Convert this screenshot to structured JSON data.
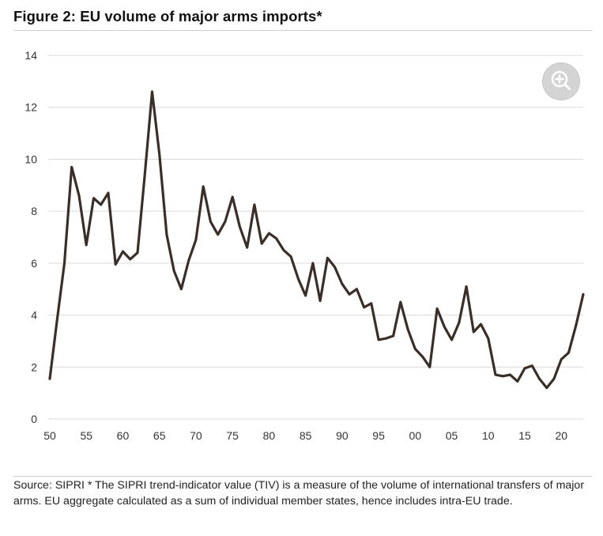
{
  "title": "Figure 2: EU volume of major arms imports*",
  "source_note": "Source: SIPRI * The SIPRI trend-indicator value (TIV) is a measure of the volume of international transfers of major arms. EU aggregate calculated as a sum of individual member states, hence includes intra-EU trade.",
  "zoom_icon": "zoom-in-icon",
  "colors": {
    "line": "#3a2e29",
    "grid": "#d9d9d9",
    "tick_text": "#333333"
  },
  "chart_data": {
    "type": "line",
    "title": "Figure 2: EU volume of major arms imports*",
    "xlabel": "",
    "ylabel": "",
    "xlim": [
      1950,
      2023
    ],
    "ylim": [
      0,
      14
    ],
    "grid": true,
    "yticks": [
      0,
      2,
      4,
      6,
      8,
      10,
      12,
      14
    ],
    "xticks": [
      {
        "value": 1950,
        "label": "50"
      },
      {
        "value": 1955,
        "label": "55"
      },
      {
        "value": 1960,
        "label": "60"
      },
      {
        "value": 1965,
        "label": "65"
      },
      {
        "value": 1970,
        "label": "70"
      },
      {
        "value": 1975,
        "label": "75"
      },
      {
        "value": 1980,
        "label": "80"
      },
      {
        "value": 1985,
        "label": "85"
      },
      {
        "value": 1990,
        "label": "90"
      },
      {
        "value": 1995,
        "label": "95"
      },
      {
        "value": 2000,
        "label": "00"
      },
      {
        "value": 2005,
        "label": "05"
      },
      {
        "value": 2010,
        "label": "10"
      },
      {
        "value": 2015,
        "label": "15"
      },
      {
        "value": 2020,
        "label": "20"
      }
    ],
    "x": [
      1950,
      1951,
      1952,
      1953,
      1954,
      1955,
      1956,
      1957,
      1958,
      1959,
      1960,
      1961,
      1962,
      1963,
      1964,
      1965,
      1966,
      1967,
      1968,
      1969,
      1970,
      1971,
      1972,
      1973,
      1974,
      1975,
      1976,
      1977,
      1978,
      1979,
      1980,
      1981,
      1982,
      1983,
      1984,
      1985,
      1986,
      1987,
      1988,
      1989,
      1990,
      1991,
      1992,
      1993,
      1994,
      1995,
      1996,
      1997,
      1998,
      1999,
      2000,
      2001,
      2002,
      2003,
      2004,
      2005,
      2006,
      2007,
      2008,
      2009,
      2010,
      2011,
      2012,
      2013,
      2014,
      2015,
      2016,
      2017,
      2018,
      2019,
      2020,
      2021,
      2022,
      2023
    ],
    "series": [
      {
        "values": [
          1.55,
          3.8,
          6.0,
          9.7,
          8.6,
          6.7,
          8.5,
          8.25,
          8.7,
          5.95,
          6.45,
          6.15,
          6.4,
          9.4,
          12.6,
          10.2,
          7.1,
          5.7,
          5.0,
          6.1,
          6.9,
          8.95,
          7.6,
          7.1,
          7.6,
          8.55,
          7.4,
          6.6,
          8.25,
          6.75,
          7.15,
          6.95,
          6.5,
          6.25,
          5.4,
          4.75,
          6.0,
          4.55,
          6.2,
          5.85,
          5.2,
          4.8,
          5.0,
          4.3,
          4.45,
          3.05,
          3.1,
          3.2,
          4.5,
          3.45,
          2.7,
          2.4,
          2.0,
          4.25,
          3.55,
          3.05,
          3.7,
          5.1,
          3.35,
          3.65,
          3.1,
          1.7,
          1.65,
          1.7,
          1.45,
          1.95,
          2.05,
          1.55,
          1.2,
          1.55,
          2.3,
          2.55,
          3.6,
          4.8
        ]
      }
    ]
  }
}
